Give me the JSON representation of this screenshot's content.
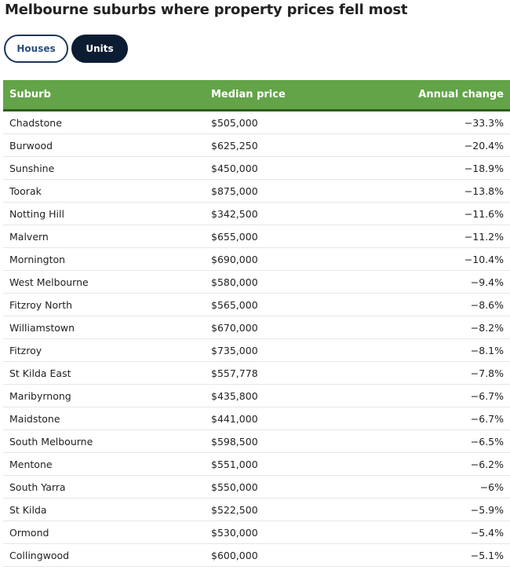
{
  "title": "Melbourne suburbs where property prices fell most",
  "tabs": [
    {
      "label": "Houses",
      "active": false
    },
    {
      "label": "Units",
      "active": true
    }
  ],
  "table": {
    "headers": [
      "Suburb",
      "Median price",
      "Annual change"
    ],
    "rows": [
      [
        "Chadstone",
        "$505,000",
        "−33.3%"
      ],
      [
        "Burwood",
        "$625,250",
        "−20.4%"
      ],
      [
        "Sunshine",
        "$450,000",
        "−18.9%"
      ],
      [
        "Toorak",
        "$875,000",
        "−13.8%"
      ],
      [
        "Notting Hill",
        "$342,500",
        "−11.6%"
      ],
      [
        "Malvern",
        "$655,000",
        "−11.2%"
      ],
      [
        "Mornington",
        "$690,000",
        "−10.4%"
      ],
      [
        "West Melbourne",
        "$580,000",
        "−9.4%"
      ],
      [
        "Fitzroy North",
        "$565,000",
        "−8.6%"
      ],
      [
        "Williamstown",
        "$670,000",
        "−8.2%"
      ],
      [
        "Fitzroy",
        "$735,000",
        "−8.1%"
      ],
      [
        "St Kilda East",
        "$557,778",
        "−7.8%"
      ],
      [
        "Maribyrnong",
        "$435,800",
        "−6.7%"
      ],
      [
        "Maidstone",
        "$441,000",
        "−6.7%"
      ],
      [
        "South Melbourne",
        "$598,500",
        "−6.5%"
      ],
      [
        "Mentone",
        "$551,000",
        "−6.2%"
      ],
      [
        "South Yarra",
        "$550,000",
        "−6%"
      ],
      [
        "St Kilda",
        "$522,500",
        "−5.9%"
      ],
      [
        "Ormond",
        "$530,000",
        "−5.4%"
      ],
      [
        "Collingwood",
        "$600,000",
        "−5.1%"
      ]
    ]
  },
  "colors": {
    "header_bg": "#62a447",
    "header_border": "#2f5d1f",
    "active_tab_bg": "#0c1c33",
    "inactive_tab_border": "#1d3557"
  }
}
